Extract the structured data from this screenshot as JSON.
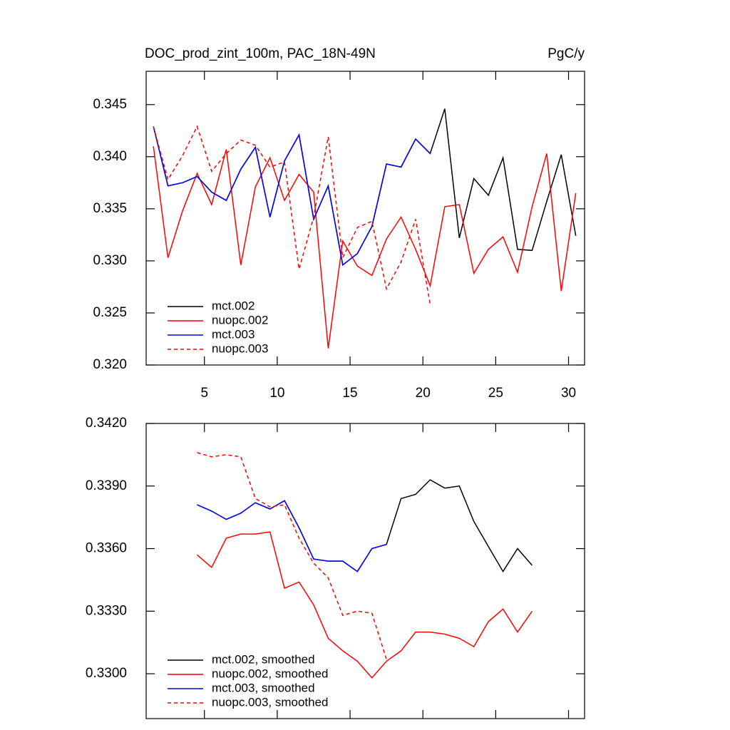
{
  "chart_data": [
    {
      "type": "line",
      "title": "DOC_prod_zint_100m, PAC_18N-49N",
      "subtitle": "PgC/y",
      "xlim": [
        1,
        31.1
      ],
      "xticks": [
        5,
        10,
        15,
        20,
        25,
        30
      ],
      "ylim": [
        0.32,
        0.3482
      ],
      "yticks": [
        {
          "value": 0.32,
          "label": "0.320"
        },
        {
          "value": 0.325,
          "label": "0.325"
        },
        {
          "value": 0.33,
          "label": "0.330"
        },
        {
          "value": 0.335,
          "label": "0.335"
        },
        {
          "value": 0.34,
          "label": "0.340"
        },
        0.345
      ],
      "legend": "lower left",
      "series": [
        {
          "name": "mct.002",
          "color": "#000000",
          "linestyle": "solid",
          "x": [
            1.5,
            2.5,
            3.5,
            4.5,
            5.5,
            6.5,
            7.5,
            8.5,
            9.5,
            10.5,
            11.5,
            12.5,
            13.5,
            14.5,
            15.5,
            16.5,
            17.5,
            18.5,
            19.5,
            20.5,
            21.5,
            22.5,
            23.5,
            24.5,
            25.5,
            26.5,
            27.5,
            28.5,
            29.5,
            30.5
          ],
          "values": [
            0.3429,
            0.3372,
            0.3375,
            0.3381,
            0.3366,
            0.3358,
            0.3388,
            0.3409,
            0.3342,
            0.3396,
            0.3421,
            0.334,
            0.3372,
            0.3296,
            0.3307,
            0.3333,
            0.3393,
            0.339,
            0.3417,
            0.3403,
            0.3446,
            0.3322,
            0.3379,
            0.3363,
            0.3399,
            0.3311,
            0.331,
            0.3357,
            0.3402,
            0.3324
          ]
        },
        {
          "name": "nuopc.002",
          "color": "#ff0000",
          "linestyle": "solid",
          "x": [
            1.5,
            2.5,
            3.5,
            4.5,
            5.5,
            6.5,
            7.5,
            8.5,
            9.5,
            10.5,
            11.5,
            12.5,
            13.5,
            14.5,
            15.5,
            16.5,
            17.5,
            18.5,
            19.5,
            20.5,
            21.5,
            22.5,
            23.5,
            24.5,
            25.5,
            26.5,
            27.5,
            28.5,
            29.5,
            30.5
          ],
          "values": [
            0.341,
            0.3303,
            0.3348,
            0.3384,
            0.3354,
            0.3407,
            0.3296,
            0.3371,
            0.3399,
            0.3358,
            0.3383,
            0.3366,
            0.3216,
            0.3319,
            0.3295,
            0.3286,
            0.3321,
            0.3342,
            0.3311,
            0.3276,
            0.3352,
            0.3354,
            0.3288,
            0.3311,
            0.3323,
            0.3289,
            0.3352,
            0.3403,
            0.3271,
            0.3365
          ]
        },
        {
          "name": "mct.003",
          "color": "#0000ff",
          "linestyle": "solid",
          "x": [
            1.5,
            2.5,
            3.5,
            4.5,
            5.5,
            6.5,
            7.5,
            8.5,
            9.5,
            10.5,
            11.5,
            12.5,
            13.5,
            14.5,
            15.5,
            16.5,
            17.5,
            18.5,
            19.5,
            20.5
          ],
          "values": [
            0.3429,
            0.3372,
            0.3375,
            0.3381,
            0.3366,
            0.3358,
            0.3388,
            0.3409,
            0.3342,
            0.3396,
            0.3421,
            0.334,
            0.3372,
            0.3296,
            0.3307,
            0.3333,
            0.3393,
            0.339,
            0.3417,
            0.3403
          ]
        },
        {
          "name": "nuopc.003",
          "color": "#ff0000",
          "linestyle": "dashed",
          "x": [
            1.5,
            2.5,
            3.5,
            4.5,
            5.5,
            6.5,
            7.5,
            8.5,
            9.5,
            10.5,
            11.5,
            12.5,
            13.5,
            14.5,
            15.5,
            16.5,
            17.5,
            18.5,
            19.5,
            20.5
          ],
          "values": [
            0.3429,
            0.3378,
            0.3401,
            0.3429,
            0.3386,
            0.3403,
            0.3416,
            0.3411,
            0.339,
            0.3395,
            0.3292,
            0.3342,
            0.3419,
            0.3303,
            0.3332,
            0.3338,
            0.3273,
            0.3299,
            0.334,
            0.3258
          ]
        }
      ]
    },
    {
      "type": "line",
      "xlim": [
        1,
        31.1
      ],
      "xticks": [
        5,
        10,
        15,
        20,
        25,
        30
      ],
      "ylim": [
        0.32785,
        0.342
      ],
      "yticks": [
        {
          "value": 0.33,
          "label": "0.3300"
        },
        {
          "value": 0.333,
          "label": "0.3330"
        },
        {
          "value": 0.336,
          "label": "0.3360"
        },
        {
          "value": 0.339,
          "label": "0.3390"
        },
        {
          "value": 0.342,
          "label": "0.3420"
        }
      ],
      "legend": "lower left",
      "series": [
        {
          "name": "mct.002, smoothed",
          "color": "#000000",
          "linestyle": "solid",
          "x": [
            4.5,
            5.5,
            6.5,
            7.5,
            8.5,
            9.5,
            10.5,
            11.5,
            12.5,
            13.5,
            14.5,
            15.5,
            16.5,
            17.5,
            18.5,
            19.5,
            20.5,
            21.5,
            22.5,
            23.5,
            24.5,
            25.5,
            26.5,
            27.5
          ],
          "values": [
            0.3381,
            0.3378,
            0.3374,
            0.3377,
            0.3382,
            0.3379,
            0.3383,
            0.337,
            0.3355,
            0.3354,
            0.3354,
            0.3349,
            0.336,
            0.3362,
            0.3384,
            0.3386,
            0.3393,
            0.3389,
            0.339,
            0.3373,
            0.3361,
            0.3349,
            0.336,
            0.3352
          ]
        },
        {
          "name": "nuopc.002, smoothed",
          "color": "#ff0000",
          "linestyle": "solid",
          "x": [
            4.5,
            5.5,
            6.5,
            7.5,
            8.5,
            9.5,
            10.5,
            11.5,
            12.5,
            13.5,
            14.5,
            15.5,
            16.5,
            17.5,
            18.5,
            19.5,
            20.5,
            21.5,
            22.5,
            23.5,
            24.5,
            25.5,
            26.5,
            27.5
          ],
          "values": [
            0.3357,
            0.3351,
            0.3365,
            0.3367,
            0.3367,
            0.3368,
            0.3341,
            0.3344,
            0.3333,
            0.3317,
            0.3311,
            0.3306,
            0.3298,
            0.3306,
            0.3311,
            0.332,
            0.332,
            0.3319,
            0.3317,
            0.3313,
            0.3325,
            0.3331,
            0.332,
            0.333
          ]
        },
        {
          "name": "mct.003, smoothed",
          "color": "#0000ff",
          "linestyle": "solid",
          "x": [
            4.5,
            5.5,
            6.5,
            7.5,
            8.5,
            9.5,
            10.5,
            11.5,
            12.5,
            13.5,
            14.5,
            15.5,
            16.5,
            17.5
          ],
          "values": [
            0.3381,
            0.3378,
            0.3374,
            0.3377,
            0.3382,
            0.3379,
            0.3383,
            0.337,
            0.3355,
            0.3354,
            0.3354,
            0.3349,
            0.336,
            0.3362
          ]
        },
        {
          "name": "nuopc.003, smoothed",
          "color": "#ff0000",
          "linestyle": "dashed",
          "x": [
            4.5,
            5.5,
            6.5,
            7.5,
            8.5,
            9.5,
            10.5,
            11.5,
            12.5,
            13.5,
            14.5,
            15.5,
            16.5,
            17.5
          ],
          "values": [
            0.3406,
            0.3404,
            0.3405,
            0.3404,
            0.3384,
            0.338,
            0.3381,
            0.3365,
            0.3353,
            0.3346,
            0.3328,
            0.333,
            0.3329,
            0.3307
          ]
        }
      ]
    }
  ]
}
